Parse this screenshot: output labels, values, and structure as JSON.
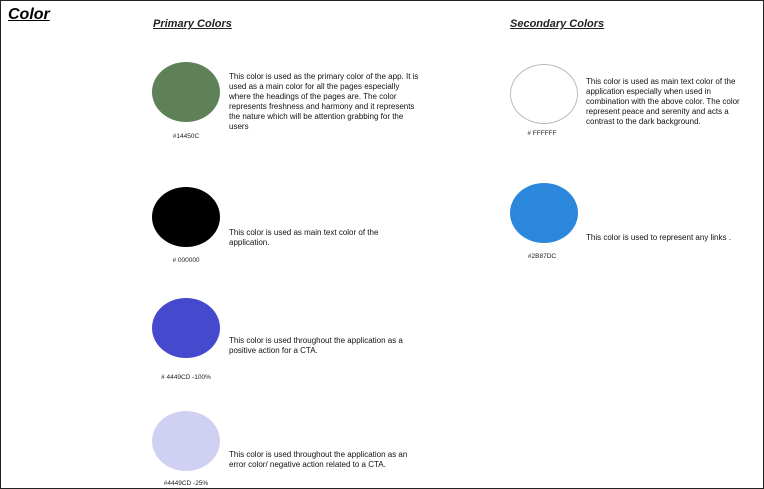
{
  "page": {
    "title": "Color"
  },
  "primary": {
    "title": "Primary Colors",
    "items": [
      {
        "hex_label": "#14450C",
        "color": "#5f8158",
        "description": "This color is used as the primary color of the app. It is used as a main color for all the pages especially where the headings of the pages are. The color represents freshness and harmony and it represents the nature which will be attention grabbing for the users"
      },
      {
        "hex_label": "# 000000",
        "color": "#000000",
        "description": "This color is used as main text color of the application."
      },
      {
        "hex_label": "# 4449CD -100%",
        "color": "#4449cd",
        "description": "This color is used throughout the application as a positive action for a CTA."
      },
      {
        "hex_label": "#4449CD -25%",
        "color": "#d0d1f2",
        "description": "This color is used throughout the application as an error color/ negative action related to a CTA."
      }
    ]
  },
  "secondary": {
    "title": "Secondary Colors",
    "items": [
      {
        "hex_label": "# FFFFFF",
        "color": "#ffffff",
        "description": "This color is used as main text color of the application especially when used in combination with the above color. The color represent peace and serenity and acts a contrast to the dark background."
      },
      {
        "hex_label": "#2B87DC",
        "color": "#2b87dc",
        "description": "This color is used to represent any links ."
      }
    ]
  }
}
